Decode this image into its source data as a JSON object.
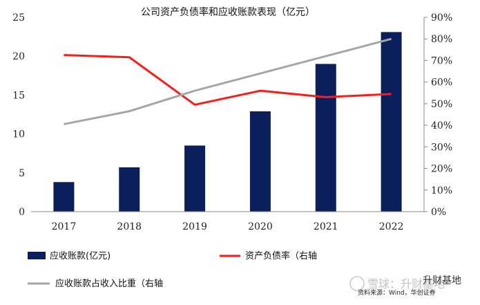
{
  "chart_data": {
    "type": "bar",
    "title": "公司资产负债率和应收账款表现（亿元）",
    "categories": [
      "2017",
      "2018",
      "2019",
      "2020",
      "2021",
      "2022"
    ],
    "series": [
      {
        "name": "应收账款(亿元)",
        "type": "bar",
        "axis": "left",
        "values": [
          3.8,
          5.7,
          8.5,
          12.9,
          19.0,
          23.1
        ],
        "color": "#0b1f5c"
      },
      {
        "name": "资产负债率（右轴",
        "type": "line",
        "axis": "right",
        "values": [
          0.725,
          0.715,
          0.495,
          0.56,
          0.53,
          0.545
        ],
        "color": "#ff1a1a"
      },
      {
        "name": "应收账款占收入比重（右轴",
        "type": "line",
        "axis": "right",
        "values": [
          0.405,
          0.465,
          0.56,
          0.64,
          0.72,
          0.8
        ],
        "color": "#a6a6a6"
      }
    ],
    "left_axis": {
      "ylim": [
        0,
        25
      ],
      "ticks": [
        0,
        5,
        10,
        15,
        20,
        25
      ],
      "tick_labels": [
        "0",
        "5",
        "10",
        "15",
        "20",
        "25"
      ]
    },
    "right_axis": {
      "ylim": [
        0,
        0.9
      ],
      "ticks": [
        0,
        0.1,
        0.2,
        0.3,
        0.4,
        0.5,
        0.6,
        0.7,
        0.8,
        0.9
      ],
      "tick_labels": [
        "0%",
        "10%",
        "20%",
        "30%",
        "40%",
        "50%",
        "60%",
        "70%",
        "80%",
        "90%"
      ]
    },
    "grid": false,
    "legend_position": "bottom"
  },
  "source_text": "资料来源：Wind，华创证券",
  "watermark_text": "雪球：升财基地",
  "watermark_brand": "升财基地"
}
